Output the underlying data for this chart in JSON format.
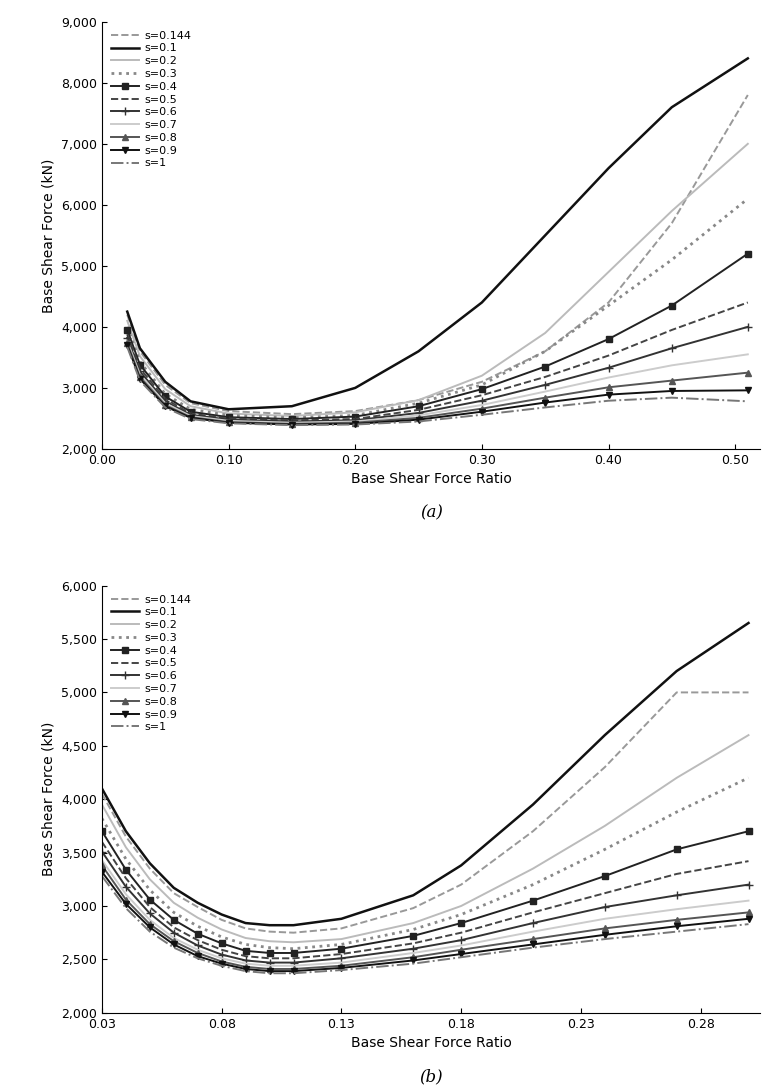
{
  "title_a": "(a)",
  "title_b": "(b)",
  "xlabel": "Base Shear Force Ratio",
  "ylabel": "Base Shear Force (kN)",
  "panel_a": {
    "xlim": [
      0.0,
      0.52
    ],
    "ylim": [
      2000,
      9000
    ],
    "xticks": [
      0.0,
      0.1,
      0.2,
      0.3,
      0.4,
      0.5
    ],
    "yticks": [
      2000,
      3000,
      4000,
      5000,
      6000,
      7000,
      8000,
      9000
    ],
    "xticklabels": [
      "0.00",
      "0.10",
      "0.20",
      "0.30",
      "0.40",
      "0.50"
    ],
    "yticklabels": [
      "2,000",
      "3,000",
      "4,000",
      "5,000",
      "6,000",
      "7,000",
      "8,000",
      "9,000"
    ],
    "series": [
      {
        "label": "s=0.144",
        "x": [
          0.02,
          0.03,
          0.05,
          0.07,
          0.1,
          0.15,
          0.2,
          0.25,
          0.3,
          0.35,
          0.4,
          0.45,
          0.51
        ],
        "y": [
          4200,
          3600,
          3050,
          2750,
          2620,
          2570,
          2620,
          2800,
          3100,
          3600,
          4400,
          5700,
          7800
        ],
        "color": "#999999",
        "linestyle": "--",
        "linewidth": 1.4,
        "marker": null,
        "markersize": 0
      },
      {
        "label": "s=0.1",
        "x": [
          0.02,
          0.03,
          0.05,
          0.07,
          0.1,
          0.15,
          0.2,
          0.25,
          0.3,
          0.35,
          0.4,
          0.45,
          0.51
        ],
        "y": [
          4250,
          3650,
          3100,
          2780,
          2650,
          2700,
          3000,
          3600,
          4400,
          5500,
          6600,
          7600,
          8400
        ],
        "color": "#111111",
        "linestyle": "-",
        "linewidth": 1.8,
        "marker": null,
        "markersize": 0
      },
      {
        "label": "s=0.2",
        "x": [
          0.02,
          0.03,
          0.05,
          0.07,
          0.1,
          0.15,
          0.2,
          0.25,
          0.3,
          0.35,
          0.4,
          0.45,
          0.51
        ],
        "y": [
          4100,
          3520,
          2980,
          2700,
          2580,
          2540,
          2600,
          2800,
          3200,
          3900,
          4900,
          5900,
          7000
        ],
        "color": "#bbbbbb",
        "linestyle": "-",
        "linewidth": 1.4,
        "marker": null,
        "markersize": 0
      },
      {
        "label": "s=0.3",
        "x": [
          0.02,
          0.03,
          0.05,
          0.07,
          0.1,
          0.15,
          0.2,
          0.25,
          0.3,
          0.35,
          0.4,
          0.45,
          0.51
        ],
        "y": [
          4000,
          3430,
          2900,
          2650,
          2550,
          2510,
          2550,
          2750,
          3050,
          3600,
          4350,
          5100,
          6100
        ],
        "color": "#888888",
        "linestyle": ":",
        "linewidth": 2.0,
        "marker": null,
        "markersize": 0
      },
      {
        "label": "s=0.4",
        "x": [
          0.02,
          0.03,
          0.05,
          0.07,
          0.1,
          0.15,
          0.2,
          0.25,
          0.3,
          0.35,
          0.4,
          0.45,
          0.51
        ],
        "y": [
          3950,
          3380,
          2860,
          2610,
          2520,
          2490,
          2530,
          2700,
          2980,
          3350,
          3800,
          4350,
          5200
        ],
        "color": "#222222",
        "linestyle": "-",
        "linewidth": 1.4,
        "marker": "s",
        "markersize": 4
      },
      {
        "label": "s=0.5",
        "x": [
          0.02,
          0.03,
          0.05,
          0.07,
          0.1,
          0.15,
          0.2,
          0.25,
          0.3,
          0.35,
          0.4,
          0.45,
          0.51
        ],
        "y": [
          3880,
          3320,
          2820,
          2580,
          2500,
          2470,
          2490,
          2640,
          2880,
          3180,
          3530,
          3950,
          4400
        ],
        "color": "#444444",
        "linestyle": "--",
        "linewidth": 1.4,
        "marker": null,
        "markersize": 0
      },
      {
        "label": "s=0.6",
        "x": [
          0.02,
          0.03,
          0.05,
          0.07,
          0.1,
          0.15,
          0.2,
          0.25,
          0.3,
          0.35,
          0.4,
          0.45,
          0.51
        ],
        "y": [
          3820,
          3270,
          2780,
          2560,
          2480,
          2450,
          2470,
          2590,
          2790,
          3050,
          3330,
          3650,
          4000
        ],
        "color": "#333333",
        "linestyle": "-",
        "linewidth": 1.4,
        "marker": "+",
        "markersize": 6
      },
      {
        "label": "s=0.7",
        "x": [
          0.02,
          0.03,
          0.05,
          0.07,
          0.1,
          0.15,
          0.2,
          0.25,
          0.3,
          0.35,
          0.4,
          0.45,
          0.51
        ],
        "y": [
          3770,
          3220,
          2750,
          2540,
          2460,
          2430,
          2450,
          2550,
          2720,
          2940,
          3170,
          3370,
          3550
        ],
        "color": "#cccccc",
        "linestyle": "-",
        "linewidth": 1.4,
        "marker": null,
        "markersize": 0
      },
      {
        "label": "s=0.8",
        "x": [
          0.02,
          0.03,
          0.05,
          0.07,
          0.1,
          0.15,
          0.2,
          0.25,
          0.3,
          0.35,
          0.4,
          0.45,
          0.51
        ],
        "y": [
          3730,
          3180,
          2720,
          2520,
          2440,
          2410,
          2430,
          2510,
          2660,
          2840,
          3010,
          3120,
          3250
        ],
        "color": "#555555",
        "linestyle": "-",
        "linewidth": 1.4,
        "marker": "^",
        "markersize": 4
      },
      {
        "label": "s=0.9",
        "x": [
          0.02,
          0.03,
          0.05,
          0.07,
          0.1,
          0.15,
          0.2,
          0.25,
          0.3,
          0.35,
          0.4,
          0.45,
          0.51
        ],
        "y": [
          3700,
          3150,
          2700,
          2510,
          2430,
          2400,
          2410,
          2480,
          2610,
          2760,
          2890,
          2950,
          2960
        ],
        "color": "#111111",
        "linestyle": "-",
        "linewidth": 1.4,
        "marker": "v",
        "markersize": 4
      },
      {
        "label": "s=1",
        "x": [
          0.02,
          0.03,
          0.05,
          0.07,
          0.1,
          0.15,
          0.2,
          0.25,
          0.3,
          0.35,
          0.4,
          0.45,
          0.51
        ],
        "y": [
          3670,
          3120,
          2680,
          2490,
          2420,
          2390,
          2400,
          2450,
          2560,
          2680,
          2790,
          2840,
          2780
        ],
        "color": "#777777",
        "linestyle": "-.",
        "linewidth": 1.4,
        "marker": null,
        "markersize": 0
      }
    ]
  },
  "panel_b": {
    "xlim": [
      0.03,
      0.305
    ],
    "ylim": [
      2000,
      6000
    ],
    "xticks": [
      0.03,
      0.08,
      0.13,
      0.18,
      0.23,
      0.28
    ],
    "yticks": [
      2000,
      2500,
      3000,
      3500,
      4000,
      4500,
      5000,
      5500,
      6000
    ],
    "xticklabels": [
      "0.03",
      "0.08",
      "0.13",
      "0.18",
      "0.23",
      "0.28"
    ],
    "yticklabels": [
      "2,000",
      "2,500",
      "3,000",
      "3,500",
      "4,000",
      "4,500",
      "5,000",
      "5,500",
      "6,000"
    ],
    "series": [
      {
        "label": "s=0.144",
        "x": [
          0.03,
          0.04,
          0.05,
          0.06,
          0.07,
          0.08,
          0.09,
          0.1,
          0.11,
          0.13,
          0.16,
          0.18,
          0.21,
          0.24,
          0.27,
          0.3
        ],
        "y": [
          4050,
          3650,
          3350,
          3120,
          2990,
          2870,
          2790,
          2760,
          2750,
          2790,
          2980,
          3200,
          3700,
          4300,
          5000,
          5000
        ],
        "color": "#999999",
        "linestyle": "--",
        "linewidth": 1.4,
        "marker": null,
        "markersize": 0
      },
      {
        "label": "s=0.1",
        "x": [
          0.03,
          0.04,
          0.05,
          0.06,
          0.07,
          0.08,
          0.09,
          0.1,
          0.11,
          0.13,
          0.16,
          0.18,
          0.21,
          0.24,
          0.27,
          0.3
        ],
        "y": [
          4100,
          3700,
          3400,
          3170,
          3030,
          2920,
          2840,
          2820,
          2820,
          2880,
          3100,
          3380,
          3950,
          4600,
          5200,
          5650
        ],
        "color": "#111111",
        "linestyle": "-",
        "linewidth": 1.8,
        "marker": null,
        "markersize": 0
      },
      {
        "label": "s=0.2",
        "x": [
          0.03,
          0.04,
          0.05,
          0.06,
          0.07,
          0.08,
          0.09,
          0.1,
          0.11,
          0.13,
          0.16,
          0.18,
          0.21,
          0.24,
          0.27,
          0.3
        ],
        "y": [
          3950,
          3550,
          3250,
          3030,
          2890,
          2780,
          2700,
          2670,
          2660,
          2690,
          2840,
          3000,
          3350,
          3750,
          4200,
          4600
        ],
        "color": "#bbbbbb",
        "linestyle": "-",
        "linewidth": 1.4,
        "marker": null,
        "markersize": 0
      },
      {
        "label": "s=0.3",
        "x": [
          0.03,
          0.04,
          0.05,
          0.06,
          0.07,
          0.08,
          0.09,
          0.1,
          0.11,
          0.13,
          0.16,
          0.18,
          0.21,
          0.24,
          0.27,
          0.3
        ],
        "y": [
          3820,
          3440,
          3150,
          2940,
          2810,
          2710,
          2640,
          2610,
          2600,
          2640,
          2780,
          2920,
          3200,
          3530,
          3880,
          4200
        ],
        "color": "#888888",
        "linestyle": ":",
        "linewidth": 2.0,
        "marker": null,
        "markersize": 0
      },
      {
        "label": "s=0.4",
        "x": [
          0.03,
          0.04,
          0.05,
          0.06,
          0.07,
          0.08,
          0.09,
          0.1,
          0.11,
          0.13,
          0.16,
          0.18,
          0.21,
          0.24,
          0.27,
          0.3
        ],
        "y": [
          3700,
          3340,
          3060,
          2870,
          2740,
          2650,
          2580,
          2560,
          2560,
          2600,
          2720,
          2840,
          3050,
          3280,
          3530,
          3700
        ],
        "color": "#222222",
        "linestyle": "-",
        "linewidth": 1.4,
        "marker": "s",
        "markersize": 4
      },
      {
        "label": "s=0.5",
        "x": [
          0.03,
          0.04,
          0.05,
          0.06,
          0.07,
          0.08,
          0.09,
          0.1,
          0.11,
          0.13,
          0.16,
          0.18,
          0.21,
          0.24,
          0.27,
          0.3
        ],
        "y": [
          3600,
          3260,
          2990,
          2800,
          2680,
          2590,
          2530,
          2510,
          2510,
          2550,
          2650,
          2750,
          2940,
          3120,
          3300,
          3420
        ],
        "color": "#444444",
        "linestyle": "--",
        "linewidth": 1.4,
        "marker": null,
        "markersize": 0
      },
      {
        "label": "s=0.6",
        "x": [
          0.03,
          0.04,
          0.05,
          0.06,
          0.07,
          0.08,
          0.09,
          0.1,
          0.11,
          0.13,
          0.16,
          0.18,
          0.21,
          0.24,
          0.27,
          0.3
        ],
        "y": [
          3510,
          3180,
          2930,
          2750,
          2630,
          2545,
          2490,
          2470,
          2470,
          2510,
          2600,
          2680,
          2840,
          2990,
          3100,
          3200
        ],
        "color": "#333333",
        "linestyle": "-",
        "linewidth": 1.4,
        "marker": "+",
        "markersize": 6
      },
      {
        "label": "s=0.7",
        "x": [
          0.03,
          0.04,
          0.05,
          0.06,
          0.07,
          0.08,
          0.09,
          0.1,
          0.11,
          0.13,
          0.16,
          0.18,
          0.21,
          0.24,
          0.27,
          0.3
        ],
        "y": [
          3430,
          3110,
          2870,
          2700,
          2590,
          2510,
          2460,
          2440,
          2440,
          2470,
          2560,
          2630,
          2760,
          2880,
          2970,
          3050
        ],
        "color": "#cccccc",
        "linestyle": "-",
        "linewidth": 1.4,
        "marker": null,
        "markersize": 0
      },
      {
        "label": "s=0.8",
        "x": [
          0.03,
          0.04,
          0.05,
          0.06,
          0.07,
          0.08,
          0.09,
          0.1,
          0.11,
          0.13,
          0.16,
          0.18,
          0.21,
          0.24,
          0.27,
          0.3
        ],
        "y": [
          3380,
          3060,
          2830,
          2670,
          2560,
          2480,
          2430,
          2410,
          2410,
          2440,
          2520,
          2590,
          2690,
          2790,
          2870,
          2940
        ],
        "color": "#555555",
        "linestyle": "-",
        "linewidth": 1.4,
        "marker": "^",
        "markersize": 4
      },
      {
        "label": "s=0.9",
        "x": [
          0.03,
          0.04,
          0.05,
          0.06,
          0.07,
          0.08,
          0.09,
          0.1,
          0.11,
          0.13,
          0.16,
          0.18,
          0.21,
          0.24,
          0.27,
          0.3
        ],
        "y": [
          3320,
          3020,
          2800,
          2640,
          2530,
          2460,
          2410,
          2390,
          2390,
          2420,
          2490,
          2550,
          2640,
          2730,
          2810,
          2880
        ],
        "color": "#111111",
        "linestyle": "-",
        "linewidth": 1.4,
        "marker": "v",
        "markersize": 4
      },
      {
        "label": "s=1",
        "x": [
          0.03,
          0.04,
          0.05,
          0.06,
          0.07,
          0.08,
          0.09,
          0.1,
          0.11,
          0.13,
          0.16,
          0.18,
          0.21,
          0.24,
          0.27,
          0.3
        ],
        "y": [
          3280,
          2980,
          2760,
          2610,
          2510,
          2440,
          2390,
          2370,
          2370,
          2400,
          2460,
          2520,
          2610,
          2690,
          2760,
          2830
        ],
        "color": "#777777",
        "linestyle": "-.",
        "linewidth": 1.4,
        "marker": null,
        "markersize": 0
      }
    ]
  }
}
